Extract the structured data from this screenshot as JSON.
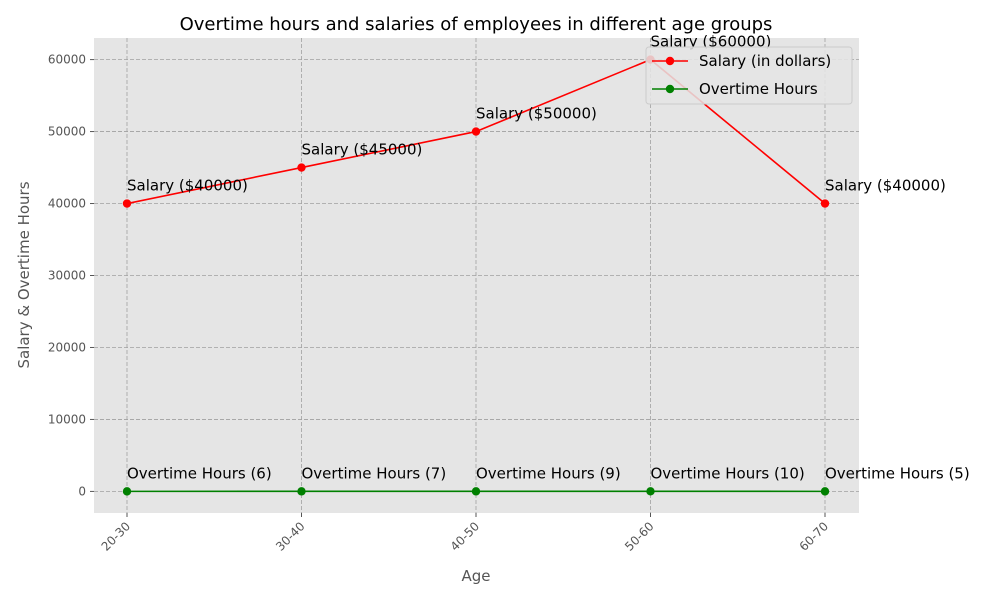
{
  "chart_data": {
    "type": "line",
    "title": "Overtime hours and salaries of employees in different age groups",
    "xlabel": "Age",
    "ylabel": "Salary & Overtime Hours",
    "categories": [
      "20-30",
      "30-40",
      "40-50",
      "50-60",
      "60-70"
    ],
    "ylim": [
      -3000,
      63000
    ],
    "yticks": [
      0,
      10000,
      20000,
      30000,
      40000,
      50000,
      60000
    ],
    "ytick_labels": [
      "0",
      "10000",
      "20000",
      "30000",
      "40000",
      "50000",
      "60000"
    ],
    "grid": true,
    "legend_position": "top-right",
    "series": [
      {
        "name": "Salary (in dollars)",
        "color": "#ff0000",
        "values": [
          40000,
          45000,
          50000,
          60000,
          40000
        ],
        "labels": [
          "Salary ($40000)",
          "Salary ($45000)",
          "Salary ($50000)",
          "Salary ($60000)",
          "Salary ($40000)"
        ]
      },
      {
        "name": "Overtime Hours",
        "color": "#008000",
        "values": [
          6,
          7,
          9,
          10,
          5
        ],
        "labels": [
          "Overtime Hours (6)",
          "Overtime Hours (7)",
          "Overtime Hours (9)",
          "Overtime Hours (10)",
          "Overtime Hours (5)"
        ]
      }
    ]
  }
}
